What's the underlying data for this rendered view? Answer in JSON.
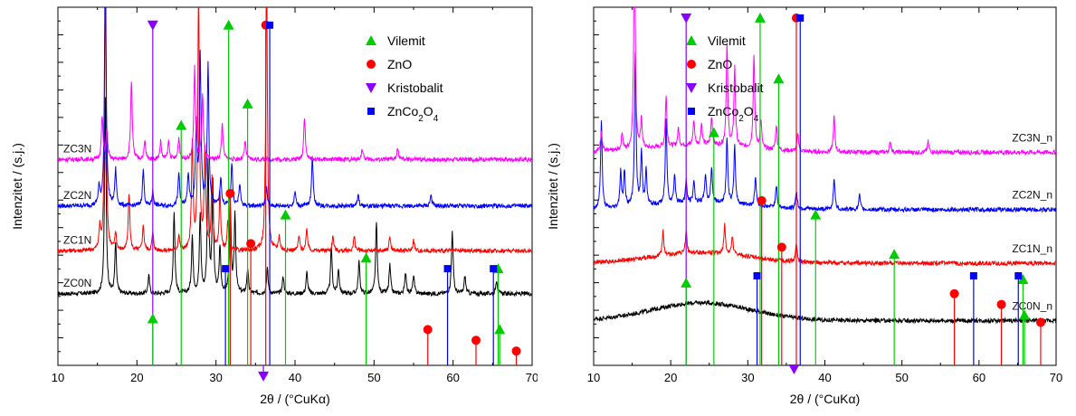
{
  "chart_data": [
    {
      "type": "line",
      "xlabel": "2θ / (°CuKα)",
      "ylabel": "Intenzitet / (s.j.)",
      "xlim": [
        10,
        70
      ],
      "x_ticks": [
        "10",
        "20",
        "30",
        "40",
        "50",
        "60",
        "70"
      ],
      "y_ticks_shown": false,
      "legend_position": "top-right",
      "legend": [
        {
          "name": "Vilemit",
          "marker": "triangle-up",
          "color": "#00cc00"
        },
        {
          "name": "ZnO",
          "marker": "circle",
          "color": "#ff0000"
        },
        {
          "name": "Kristobalit",
          "marker": "triangle-down",
          "color": "#8800ff"
        },
        {
          "name": "ZnCo2O4",
          "marker": "square",
          "color": "#0000ff"
        }
      ],
      "series": [
        {
          "name": "ZC0N",
          "color": "#000000",
          "baseline": 0.0,
          "peaks": [
            [
              16.0,
              0.55
            ],
            [
              17.3,
              0.14
            ],
            [
              21.5,
              0.05
            ],
            [
              24.7,
              0.23
            ],
            [
              27.0,
              0.16
            ],
            [
              28.0,
              0.22
            ],
            [
              29.0,
              0.36
            ],
            [
              29.6,
              0.3
            ],
            [
              30.5,
              0.13
            ],
            [
              31.8,
              0.25
            ],
            [
              32.4,
              0.22
            ],
            [
              34.0,
              0.07
            ],
            [
              36.5,
              0.07
            ],
            [
              38.5,
              0.05
            ],
            [
              41.5,
              0.06
            ],
            [
              44.6,
              0.13
            ],
            [
              45.5,
              0.07
            ],
            [
              48.1,
              0.09
            ],
            [
              50.3,
              0.2
            ],
            [
              52.0,
              0.08
            ],
            [
              54.0,
              0.06
            ],
            [
              55.0,
              0.05
            ],
            [
              59.9,
              0.18
            ],
            [
              61.5,
              0.05
            ],
            [
              65.5,
              0.04
            ]
          ]
        },
        {
          "name": "ZC1N",
          "color": "#ff0000",
          "baseline": 0.12,
          "peaks": [
            [
              15.3,
              0.06
            ],
            [
              16.0,
              0.75
            ],
            [
              17.3,
              0.05
            ],
            [
              19.0,
              0.16
            ],
            [
              20.8,
              0.07
            ],
            [
              22.0,
              0.05
            ],
            [
              25.3,
              0.04
            ],
            [
              27.0,
              0.3
            ],
            [
              27.8,
              0.72
            ],
            [
              28.6,
              0.28
            ],
            [
              29.5,
              0.2
            ],
            [
              30.5,
              0.16
            ],
            [
              31.5,
              0.08
            ],
            [
              36.4,
              0.8
            ],
            [
              38.0,
              0.04
            ],
            [
              40.5,
              0.04
            ],
            [
              41.5,
              0.06
            ],
            [
              44.8,
              0.04
            ],
            [
              47.5,
              0.04
            ],
            [
              52.0,
              0.04
            ],
            [
              55.0,
              0.03
            ]
          ]
        },
        {
          "name": "ZC2N",
          "color": "#0000ff",
          "baseline": 0.25,
          "peaks": [
            [
              15.2,
              0.05
            ],
            [
              16.0,
              0.7
            ],
            [
              17.3,
              0.1
            ],
            [
              20.8,
              0.1
            ],
            [
              22.0,
              0.04
            ],
            [
              25.3,
              0.09
            ],
            [
              26.5,
              0.09
            ],
            [
              27.5,
              0.22
            ],
            [
              28.0,
              0.42
            ],
            [
              29.0,
              0.4
            ],
            [
              30.6,
              0.08
            ],
            [
              32.0,
              0.12
            ],
            [
              33.0,
              0.06
            ],
            [
              36.4,
              0.05
            ],
            [
              40.0,
              0.04
            ],
            [
              42.2,
              0.14
            ],
            [
              48.0,
              0.03
            ],
            [
              57.2,
              0.03
            ]
          ]
        },
        {
          "name": "ZC3N",
          "color": "#ff00ff",
          "baseline": 0.38,
          "peaks": [
            [
              15.6,
              0.12
            ],
            [
              16.2,
              0.08
            ],
            [
              19.3,
              0.22
            ],
            [
              21.0,
              0.05
            ],
            [
              23.0,
              0.05
            ],
            [
              24.0,
              0.05
            ],
            [
              25.3,
              0.06
            ],
            [
              27.3,
              0.26
            ],
            [
              28.3,
              0.18
            ],
            [
              30.8,
              0.1
            ],
            [
              33.7,
              0.05
            ],
            [
              41.2,
              0.12
            ],
            [
              48.5,
              0.03
            ],
            [
              53.0,
              0.03
            ]
          ]
        }
      ],
      "reference_lines": [
        {
          "phase": "Kristobalit",
          "color": "#8800ff",
          "marker": "triangle-down",
          "marks": [
            [
              22.0,
              0.95
            ],
            [
              36.0,
              -0.03
            ]
          ]
        },
        {
          "phase": "Vilemit",
          "color": "#00cc00",
          "marker": "triangle-up",
          "marks": [
            [
              22.0,
              0.13
            ],
            [
              25.6,
              0.67
            ],
            [
              31.6,
              0.95
            ],
            [
              34.0,
              0.73
            ],
            [
              38.8,
              0.42
            ],
            [
              49.0,
              0.3
            ],
            [
              65.7,
              0.27
            ],
            [
              65.9,
              0.1
            ]
          ]
        },
        {
          "phase": "ZnO",
          "color": "#ff0000",
          "marker": "circle",
          "marks": [
            [
              31.8,
              0.48
            ],
            [
              34.4,
              0.34
            ],
            [
              36.3,
              0.95
            ],
            [
              56.8,
              0.1
            ],
            [
              62.9,
              0.07
            ],
            [
              68.0,
              0.04
            ]
          ]
        },
        {
          "phase": "ZnCo2O4",
          "color": "#0000ff",
          "marker": "square",
          "marks": [
            [
              31.2,
              0.27
            ],
            [
              36.8,
              0.95
            ],
            [
              59.3,
              0.27
            ],
            [
              65.1,
              0.27
            ]
          ]
        }
      ]
    },
    {
      "type": "line",
      "xlabel": "2θ / (°CuKα)",
      "ylabel": "Intenzitet / (s.j.)",
      "xlim": [
        10,
        70
      ],
      "x_ticks": [
        "10",
        "20",
        "30",
        "40",
        "50",
        "60",
        "70"
      ],
      "y_ticks_shown": false,
      "legend_position": "top-right",
      "legend": [
        {
          "name": "Vilemit",
          "marker": "triangle-up",
          "color": "#00cc00"
        },
        {
          "name": "ZnO",
          "marker": "circle",
          "color": "#ff0000"
        },
        {
          "name": "Kristobalit",
          "marker": "triangle-down",
          "color": "#8800ff"
        },
        {
          "name": "ZnCo2O4",
          "marker": "square",
          "color": "#0000ff"
        }
      ],
      "series": [
        {
          "name": "ZC0N_n",
          "color": "#000000",
          "baseline": 0.0,
          "hump": 0.05,
          "peaks": []
        },
        {
          "name": "ZC1N_n",
          "color": "#ff0000",
          "baseline": 0.2,
          "hump": 0.03,
          "peaks": [
            [
              19.0,
              0.07
            ],
            [
              22.0,
              0.06
            ],
            [
              27.0,
              0.08
            ],
            [
              28.0,
              0.05
            ],
            [
              36.3,
              0.05
            ]
          ]
        },
        {
          "name": "ZC2N_n",
          "color": "#0000ff",
          "baseline": 0.38,
          "hump": 0.02,
          "peaks": [
            [
              11.0,
              0.25
            ],
            [
              13.5,
              0.1
            ],
            [
              14.0,
              0.1
            ],
            [
              15.4,
              0.42
            ],
            [
              16.2,
              0.15
            ],
            [
              16.8,
              0.1
            ],
            [
              19.4,
              0.24
            ],
            [
              20.5,
              0.08
            ],
            [
              22.0,
              0.06
            ],
            [
              23.0,
              0.06
            ],
            [
              24.5,
              0.08
            ],
            [
              25.3,
              0.1
            ],
            [
              27.3,
              0.18
            ],
            [
              28.3,
              0.16
            ],
            [
              31.0,
              0.08
            ],
            [
              33.7,
              0.06
            ],
            [
              36.3,
              0.05
            ],
            [
              41.2,
              0.09
            ],
            [
              44.5,
              0.04
            ]
          ]
        },
        {
          "name": "ZC3N_n",
          "color": "#ff00ff",
          "baseline": 0.58,
          "hump": 0.02,
          "peaks": [
            [
              11.0,
              0.06
            ],
            [
              13.7,
              0.05
            ],
            [
              15.3,
              0.6
            ],
            [
              16.2,
              0.08
            ],
            [
              19.4,
              0.14
            ],
            [
              21.0,
              0.05
            ],
            [
              23.0,
              0.07
            ],
            [
              24.0,
              0.06
            ],
            [
              25.3,
              0.08
            ],
            [
              27.3,
              0.28
            ],
            [
              28.3,
              0.22
            ],
            [
              30.8,
              0.26
            ],
            [
              31.7,
              0.08
            ],
            [
              33.7,
              0.07
            ],
            [
              36.5,
              0.05
            ],
            [
              41.2,
              0.1
            ],
            [
              48.5,
              0.03
            ],
            [
              53.4,
              0.03
            ]
          ]
        }
      ],
      "reference_lines": [
        {
          "phase": "Kristobalit",
          "color": "#8800ff",
          "marker": "triangle-down",
          "marks": [
            [
              22.0,
              0.97
            ],
            [
              36.0,
              -0.01
            ]
          ]
        },
        {
          "phase": "Vilemit",
          "color": "#00cc00",
          "marker": "triangle-up",
          "marks": [
            [
              22.0,
              0.23
            ],
            [
              25.6,
              0.65
            ],
            [
              31.6,
              0.97
            ],
            [
              34.0,
              0.8
            ],
            [
              38.8,
              0.42
            ],
            [
              49.0,
              0.31
            ],
            [
              65.7,
              0.24
            ],
            [
              65.9,
              0.14
            ]
          ]
        },
        {
          "phase": "ZnO",
          "color": "#ff0000",
          "marker": "circle",
          "marks": [
            [
              31.8,
              0.46
            ],
            [
              34.4,
              0.33
            ],
            [
              36.3,
              0.97
            ],
            [
              56.8,
              0.2
            ],
            [
              62.9,
              0.17
            ],
            [
              68.0,
              0.12
            ]
          ]
        },
        {
          "phase": "ZnCo2O4",
          "color": "#0000ff",
          "marker": "square",
          "marks": [
            [
              31.2,
              0.25
            ],
            [
              36.8,
              0.97
            ],
            [
              59.3,
              0.25
            ],
            [
              65.1,
              0.25
            ]
          ]
        }
      ]
    }
  ]
}
